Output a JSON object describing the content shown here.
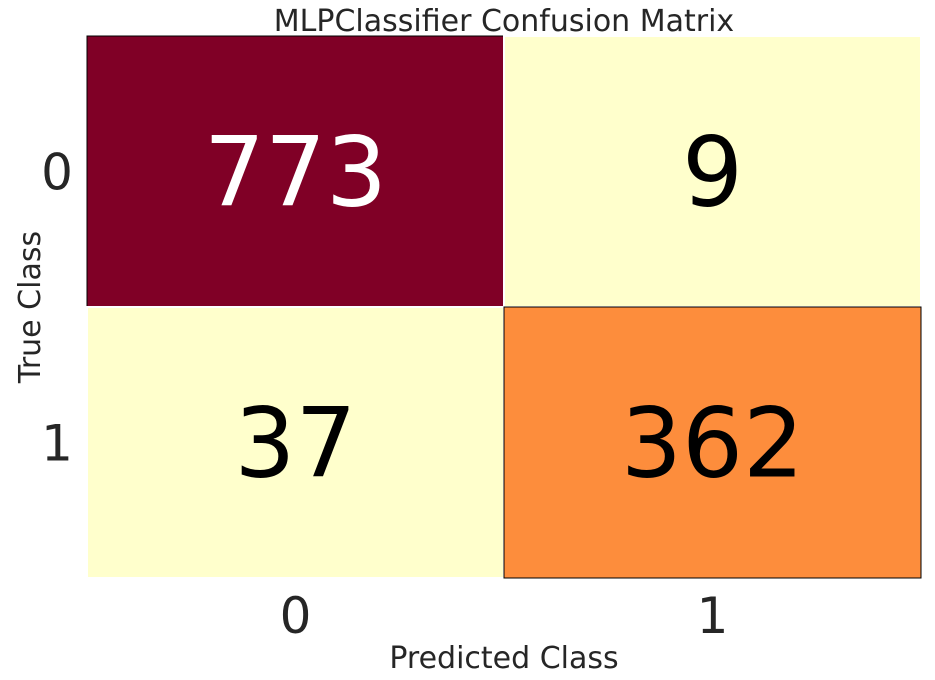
{
  "chart_data": {
    "type": "heatmap",
    "title": "MLPClassifier Confusion Matrix",
    "xlabel": "Predicted Class",
    "ylabel": "True Class",
    "x_categories": [
      "0",
      "1"
    ],
    "y_categories": [
      "0",
      "1"
    ],
    "values": [
      [
        773,
        9
      ],
      [
        37,
        362
      ]
    ],
    "cell_colors": [
      [
        "#800026",
        "#ffffcc"
      ],
      [
        "#ffffcc",
        "#fd8d3c"
      ]
    ],
    "text_colors": [
      [
        "#ffffff",
        "#000000"
      ],
      [
        "#000000",
        "#000000"
      ]
    ],
    "colormap": "YlOrRd",
    "grid": false,
    "legend": "none"
  }
}
